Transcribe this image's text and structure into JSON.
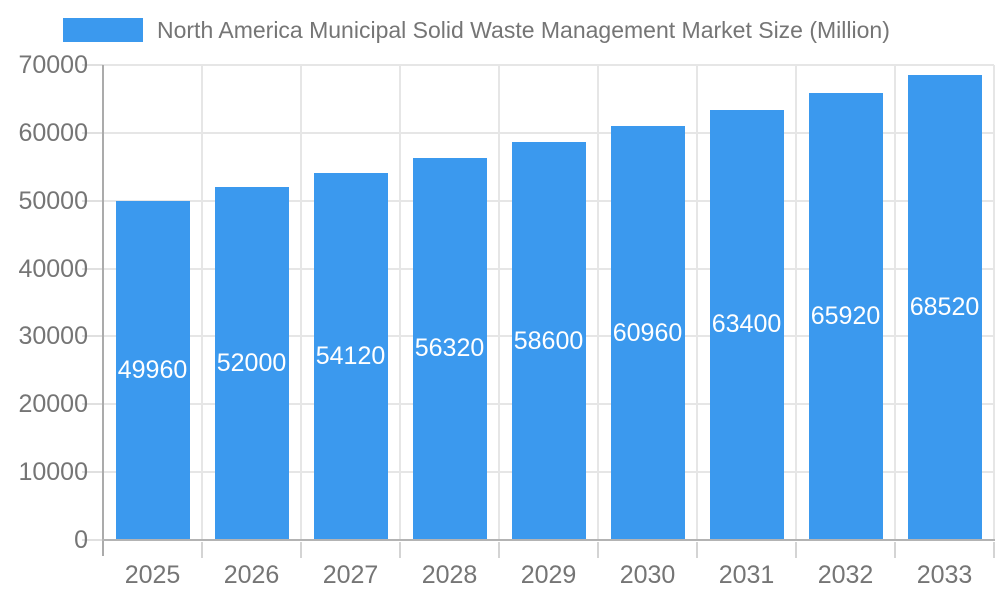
{
  "legend": {
    "label": "North America Municipal Solid Waste Management Market Size (Million)"
  },
  "chart_data": {
    "type": "bar",
    "title": "North America Municipal Solid Waste Management Market Size (Million)",
    "categories": [
      "2025",
      "2026",
      "2027",
      "2028",
      "2029",
      "2030",
      "2031",
      "2032",
      "2033"
    ],
    "values": [
      49960,
      52000,
      54120,
      56320,
      58600,
      60960,
      63400,
      65920,
      68520
    ],
    "xlabel": "",
    "ylabel": "",
    "ylim": [
      0,
      70000
    ],
    "yticks": [
      0,
      10000,
      20000,
      30000,
      40000,
      50000,
      60000,
      70000
    ],
    "grid": true,
    "legend_position": "top",
    "bar_labels_shown": true
  },
  "colors": {
    "bar": "#3B99EE",
    "bar_label": "#ffffff",
    "text": "#757575",
    "grid": "#e6e6e6",
    "tick": "#d4d4d4",
    "axis": "#b3b3b3",
    "background": "#ffffff"
  }
}
